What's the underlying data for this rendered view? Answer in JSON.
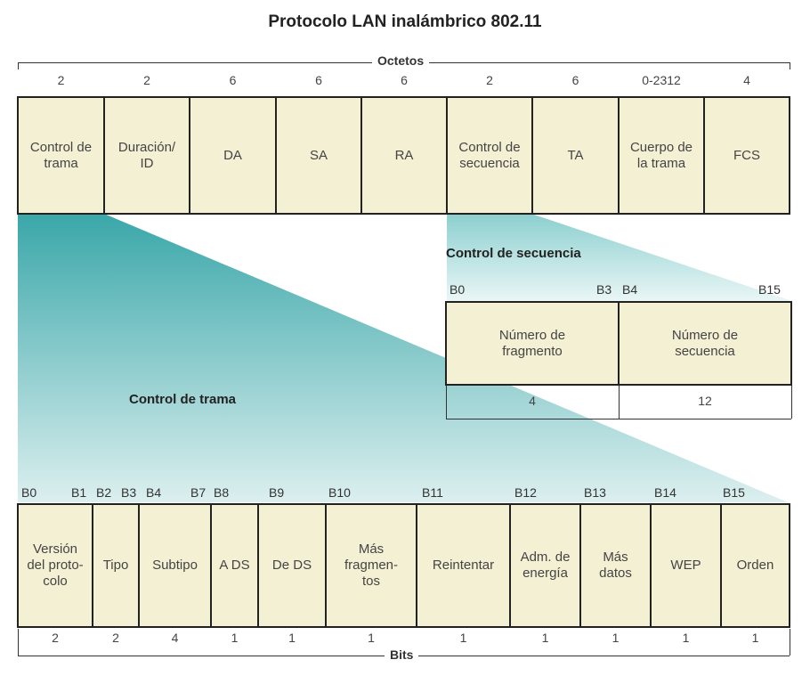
{
  "title": "Protocolo LAN inalámbrico 802.11",
  "frame": {
    "axis_label": "Octetos",
    "fields": [
      {
        "label": "Control de\ntrama",
        "size": "2"
      },
      {
        "label": "Duración/\nID",
        "size": "2"
      },
      {
        "label": "DA",
        "size": "6"
      },
      {
        "label": "SA",
        "size": "6"
      },
      {
        "label": "RA",
        "size": "6"
      },
      {
        "label": "Control de\nsecuencia",
        "size": "2"
      },
      {
        "label": "TA",
        "size": "6"
      },
      {
        "label": "Cuerpo de\nla trama",
        "size": "0-2312"
      },
      {
        "label": "FCS",
        "size": "4"
      }
    ]
  },
  "sequence_control": {
    "title": "Control de secuencia",
    "bits": [
      "B0",
      "B3",
      "B4",
      "B15"
    ],
    "fields": [
      {
        "label": "Número de\nfragmento",
        "size": "4"
      },
      {
        "label": "Número de\nsecuencia",
        "size": "12"
      }
    ]
  },
  "frame_control": {
    "title": "Control de trama",
    "axis_label": "Bits",
    "bits": [
      "B0",
      "B1",
      "B2",
      "B3",
      "B4",
      "B7",
      "B8",
      "B9",
      "B10",
      "B11",
      "B12",
      "B13",
      "B14",
      "B15"
    ],
    "fields": [
      {
        "label": "Versión\ndel proto-\ncolo",
        "size": "2"
      },
      {
        "label": "Tipo",
        "size": "2"
      },
      {
        "label": "Subtipo",
        "size": "4"
      },
      {
        "label": "A DS",
        "size": "1"
      },
      {
        "label": "De DS",
        "size": "1"
      },
      {
        "label": "Más\nfragmen-\ntos",
        "size": "1"
      },
      {
        "label": "Reintentar",
        "size": "1"
      },
      {
        "label": "Adm. de\nenergía",
        "size": "1"
      },
      {
        "label": "Más\ndatos",
        "size": "1"
      },
      {
        "label": "WEP",
        "size": "1"
      },
      {
        "label": "Orden",
        "size": "1"
      }
    ]
  },
  "colors": {
    "field_fill": "#f4f0d4",
    "teal": "#3aa7a9",
    "teal_light": "#d8efef"
  }
}
